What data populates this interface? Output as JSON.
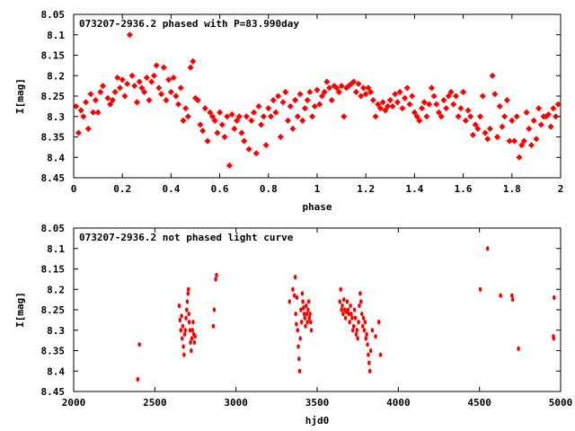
{
  "chart_data": [
    {
      "type": "scatter",
      "title": "073207-2936.2 phased with P=83.990day",
      "xlabel": "phase",
      "ylabel": "I[mag]",
      "xlim": [
        0,
        2
      ],
      "ylim": [
        8.05,
        8.45
      ],
      "y_inverted": true,
      "grid": false,
      "marker_color": "#ff0000",
      "x_ticks": [
        "0",
        "0.2",
        "0.4",
        "0.6",
        "0.8",
        "1",
        "1.2",
        "1.4",
        "1.6",
        "1.8",
        "2"
      ],
      "y_ticks": [
        "8.05",
        "8.1",
        "8.15",
        "8.2",
        "8.25",
        "8.3",
        "8.35",
        "8.4",
        "8.45"
      ],
      "points": [
        [
          0.01,
          8.275
        ],
        [
          0.02,
          8.34
        ],
        [
          0.03,
          8.285
        ],
        [
          0.04,
          8.3
        ],
        [
          0.05,
          8.265
        ],
        [
          0.06,
          8.33
        ],
        [
          0.07,
          8.245
        ],
        [
          0.08,
          8.29
        ],
        [
          0.09,
          8.26
        ],
        [
          0.1,
          8.29
        ],
        [
          0.11,
          8.24
        ],
        [
          0.12,
          8.225
        ],
        [
          0.14,
          8.255
        ],
        [
          0.15,
          8.27
        ],
        [
          0.16,
          8.26
        ],
        [
          0.17,
          8.24
        ],
        [
          0.18,
          8.205
        ],
        [
          0.19,
          8.23
        ],
        [
          0.2,
          8.21
        ],
        [
          0.21,
          8.25
        ],
        [
          0.22,
          8.22
        ],
        [
          0.23,
          8.1
        ],
        [
          0.24,
          8.2
        ],
        [
          0.25,
          8.225
        ],
        [
          0.26,
          8.265
        ],
        [
          0.27,
          8.215
        ],
        [
          0.28,
          8.23
        ],
        [
          0.29,
          8.24
        ],
        [
          0.3,
          8.205
        ],
        [
          0.31,
          8.26
        ],
        [
          0.32,
          8.215
        ],
        [
          0.33,
          8.2
        ],
        [
          0.34,
          8.175
        ],
        [
          0.35,
          8.23
        ],
        [
          0.36,
          8.245
        ],
        [
          0.37,
          8.18
        ],
        [
          0.38,
          8.26
        ],
        [
          0.39,
          8.21
        ],
        [
          0.4,
          8.24
        ],
        [
          0.41,
          8.205
        ],
        [
          0.42,
          8.25
        ],
        [
          0.43,
          8.27
        ],
        [
          0.44,
          8.23
        ],
        [
          0.45,
          8.31
        ],
        [
          0.46,
          8.28
        ],
        [
          0.47,
          8.3
        ],
        [
          0.48,
          8.18
        ],
        [
          0.49,
          8.165
        ],
        [
          0.5,
          8.255
        ],
        [
          0.51,
          8.26
        ],
        [
          0.52,
          8.32
        ],
        [
          0.53,
          8.335
        ],
        [
          0.54,
          8.28
        ],
        [
          0.55,
          8.36
        ],
        [
          0.56,
          8.29
        ],
        [
          0.57,
          8.3
        ],
        [
          0.58,
          8.31
        ],
        [
          0.59,
          8.34
        ],
        [
          0.6,
          8.29
        ],
        [
          0.61,
          8.32
        ],
        [
          0.62,
          8.35
        ],
        [
          0.63,
          8.3
        ],
        [
          0.64,
          8.42
        ],
        [
          0.65,
          8.295
        ],
        [
          0.66,
          8.33
        ],
        [
          0.67,
          8.31
        ],
        [
          0.68,
          8.3
        ],
        [
          0.69,
          8.34
        ],
        [
          0.7,
          8.36
        ],
        [
          0.71,
          8.3
        ],
        [
          0.72,
          8.38
        ],
        [
          0.73,
          8.31
        ],
        [
          0.74,
          8.29
        ],
        [
          0.75,
          8.39
        ],
        [
          0.76,
          8.275
        ],
        [
          0.77,
          8.32
        ],
        [
          0.78,
          8.3
        ],
        [
          0.79,
          8.37
        ],
        [
          0.8,
          8.28
        ],
        [
          0.81,
          8.3
        ],
        [
          0.82,
          8.26
        ],
        [
          0.83,
          8.29
        ],
        [
          0.84,
          8.25
        ],
        [
          0.85,
          8.35
        ],
        [
          0.86,
          8.265
        ],
        [
          0.87,
          8.24
        ],
        [
          0.88,
          8.31
        ],
        [
          0.89,
          8.275
        ],
        [
          0.9,
          8.33
        ],
        [
          0.91,
          8.26
        ],
        [
          0.92,
          8.3
        ],
        [
          0.93,
          8.245
        ],
        [
          0.94,
          8.31
        ],
        [
          0.95,
          8.28
        ],
        [
          0.96,
          8.26
        ],
        [
          0.97,
          8.24
        ],
        [
          0.98,
          8.3
        ],
        [
          0.99,
          8.275
        ],
        [
          1.0,
          8.235
        ],
        [
          1.01,
          8.27
        ],
        [
          1.02,
          8.25
        ],
        [
          1.03,
          8.24
        ],
        [
          1.04,
          8.215
        ],
        [
          1.05,
          8.23
        ],
        [
          1.06,
          8.26
        ],
        [
          1.07,
          8.225
        ],
        [
          1.08,
          8.23
        ],
        [
          1.09,
          8.24
        ],
        [
          1.1,
          8.225
        ],
        [
          1.11,
          8.3
        ],
        [
          1.12,
          8.23
        ],
        [
          1.13,
          8.225
        ],
        [
          1.14,
          8.22
        ],
        [
          1.15,
          8.215
        ],
        [
          1.16,
          8.24
        ],
        [
          1.17,
          8.22
        ],
        [
          1.18,
          8.25
        ],
        [
          1.19,
          8.23
        ],
        [
          1.2,
          8.245
        ],
        [
          1.21,
          8.23
        ],
        [
          1.22,
          8.24
        ],
        [
          1.23,
          8.26
        ],
        [
          1.24,
          8.3
        ],
        [
          1.25,
          8.27
        ],
        [
          1.26,
          8.28
        ],
        [
          1.27,
          8.265
        ],
        [
          1.28,
          8.285
        ],
        [
          1.29,
          8.275
        ],
        [
          1.3,
          8.26
        ],
        [
          1.31,
          8.275
        ],
        [
          1.32,
          8.245
        ],
        [
          1.33,
          8.265
        ],
        [
          1.34,
          8.24
        ],
        [
          1.35,
          8.28
        ],
        [
          1.36,
          8.255
        ],
        [
          1.37,
          8.23
        ],
        [
          1.38,
          8.27
        ],
        [
          1.39,
          8.25
        ],
        [
          1.4,
          8.29
        ],
        [
          1.41,
          8.3
        ],
        [
          1.42,
          8.31
        ],
        [
          1.43,
          8.28
        ],
        [
          1.44,
          8.265
        ],
        [
          1.45,
          8.3
        ],
        [
          1.46,
          8.27
        ],
        [
          1.47,
          8.23
        ],
        [
          1.48,
          8.25
        ],
        [
          1.49,
          8.27
        ],
        [
          1.5,
          8.29
        ],
        [
          1.51,
          8.3
        ],
        [
          1.52,
          8.26
        ],
        [
          1.53,
          8.28
        ],
        [
          1.54,
          8.25
        ],
        [
          1.55,
          8.24
        ],
        [
          1.56,
          8.27
        ],
        [
          1.57,
          8.25
        ],
        [
          1.58,
          8.3
        ],
        [
          1.59,
          8.28
        ],
        [
          1.6,
          8.24
        ],
        [
          1.61,
          8.31
        ],
        [
          1.62,
          8.285
        ],
        [
          1.63,
          8.3
        ],
        [
          1.64,
          8.345
        ],
        [
          1.65,
          8.32
        ],
        [
          1.66,
          8.33
        ],
        [
          1.67,
          8.3
        ],
        [
          1.68,
          8.25
        ],
        [
          1.69,
          8.34
        ],
        [
          1.7,
          8.355
        ],
        [
          1.71,
          8.33
        ],
        [
          1.72,
          8.2
        ],
        [
          1.73,
          8.245
        ],
        [
          1.74,
          8.35
        ],
        [
          1.75,
          8.275
        ],
        [
          1.76,
          8.325
        ],
        [
          1.77,
          8.3
        ],
        [
          1.78,
          8.26
        ],
        [
          1.79,
          8.36
        ],
        [
          1.8,
          8.31
        ],
        [
          1.81,
          8.36
        ],
        [
          1.82,
          8.3
        ],
        [
          1.83,
          8.4
        ],
        [
          1.84,
          8.37
        ],
        [
          1.85,
          8.36
        ],
        [
          1.86,
          8.29
        ],
        [
          1.87,
          8.33
        ],
        [
          1.88,
          8.37
        ],
        [
          1.89,
          8.31
        ],
        [
          1.9,
          8.355
        ],
        [
          1.91,
          8.28
        ],
        [
          1.92,
          8.32
        ],
        [
          1.93,
          8.3
        ],
        [
          1.94,
          8.3
        ],
        [
          1.95,
          8.295
        ],
        [
          1.96,
          8.325
        ],
        [
          1.97,
          8.28
        ],
        [
          1.98,
          8.3
        ],
        [
          1.99,
          8.27
        ]
      ]
    },
    {
      "type": "scatter",
      "title": "073207-2936.2 not phased light curve",
      "xlabel": "hjd0",
      "ylabel": "I[mag]",
      "xlim": [
        2000,
        5000
      ],
      "ylim": [
        8.05,
        8.45
      ],
      "y_inverted": true,
      "grid": false,
      "marker_color": "#ff0000",
      "x_ticks": [
        "2000",
        "2500",
        "3000",
        "3500",
        "4000",
        "4500",
        "5000"
      ],
      "y_ticks": [
        "8.05",
        "8.1",
        "8.15",
        "8.2",
        "8.25",
        "8.3",
        "8.35",
        "8.4",
        "8.45"
      ],
      "points": [
        [
          2395,
          8.42
        ],
        [
          2405,
          8.335
        ],
        [
          2650,
          8.24
        ],
        [
          2655,
          8.275
        ],
        [
          2660,
          8.3
        ],
        [
          2665,
          8.265
        ],
        [
          2668,
          8.32
        ],
        [
          2672,
          8.29
        ],
        [
          2676,
          8.34
        ],
        [
          2680,
          8.36
        ],
        [
          2684,
          8.31
        ],
        [
          2688,
          8.3
        ],
        [
          2692,
          8.27
        ],
        [
          2696,
          8.25
        ],
        [
          2700,
          8.23
        ],
        [
          2704,
          8.21
        ],
        [
          2707,
          8.2
        ],
        [
          2710,
          8.26
        ],
        [
          2712,
          8.28
        ],
        [
          2716,
          8.3
        ],
        [
          2720,
          8.33
        ],
        [
          2724,
          8.35
        ],
        [
          2728,
          8.32
        ],
        [
          2732,
          8.3
        ],
        [
          2736,
          8.28
        ],
        [
          2740,
          8.31
        ],
        [
          2744,
          8.33
        ],
        [
          2748,
          8.315
        ],
        [
          2860,
          8.29
        ],
        [
          2866,
          8.25
        ],
        [
          2875,
          8.175
        ],
        [
          2880,
          8.165
        ],
        [
          3330,
          8.23
        ],
        [
          3350,
          8.2
        ],
        [
          3360,
          8.215
        ],
        [
          3365,
          8.17
        ],
        [
          3368,
          8.26
        ],
        [
          3372,
          8.285
        ],
        [
          3376,
          8.22
        ],
        [
          3380,
          8.3
        ],
        [
          3384,
          8.34
        ],
        [
          3388,
          8.37
        ],
        [
          3392,
          8.4
        ],
        [
          3396,
          8.32
        ],
        [
          3400,
          8.25
        ],
        [
          3404,
          8.28
        ],
        [
          3408,
          8.21
        ],
        [
          3412,
          8.23
        ],
        [
          3416,
          8.245
        ],
        [
          3420,
          8.26
        ],
        [
          3424,
          8.27
        ],
        [
          3428,
          8.29
        ],
        [
          3432,
          8.24
        ],
        [
          3436,
          8.26
        ],
        [
          3440,
          8.28
        ],
        [
          3444,
          8.25
        ],
        [
          3448,
          8.23
        ],
        [
          3452,
          8.27
        ],
        [
          3456,
          8.26
        ],
        [
          3460,
          8.28
        ],
        [
          3464,
          8.3
        ],
        [
          3640,
          8.23
        ],
        [
          3645,
          8.2
        ],
        [
          3650,
          8.25
        ],
        [
          3655,
          8.24
        ],
        [
          3660,
          8.26
        ],
        [
          3665,
          8.225
        ],
        [
          3670,
          8.25
        ],
        [
          3675,
          8.27
        ],
        [
          3680,
          8.255
        ],
        [
          3685,
          8.23
        ],
        [
          3690,
          8.25
        ],
        [
          3695,
          8.26
        ],
        [
          3700,
          8.28
        ],
        [
          3705,
          8.24
        ],
        [
          3710,
          8.26
        ],
        [
          3715,
          8.27
        ],
        [
          3720,
          8.3
        ],
        [
          3725,
          8.29
        ],
        [
          3730,
          8.25
        ],
        [
          3735,
          8.27
        ],
        [
          3740,
          8.31
        ],
        [
          3745,
          8.3
        ],
        [
          3750,
          8.32
        ],
        [
          3755,
          8.28
        ],
        [
          3760,
          8.24
        ],
        [
          3765,
          8.21
        ],
        [
          3770,
          8.23
        ],
        [
          3775,
          8.26
        ],
        [
          3780,
          8.29
        ],
        [
          3785,
          8.27
        ],
        [
          3790,
          8.3
        ],
        [
          3795,
          8.28
        ],
        [
          3800,
          8.32
        ],
        [
          3805,
          8.31
        ],
        [
          3810,
          8.335
        ],
        [
          3815,
          8.36
        ],
        [
          3820,
          8.38
        ],
        [
          3825,
          8.4
        ],
        [
          3830,
          8.35
        ],
        [
          3840,
          8.3
        ],
        [
          3860,
          8.315
        ],
        [
          3880,
          8.28
        ],
        [
          3890,
          8.36
        ],
        [
          4505,
          8.2
        ],
        [
          4550,
          8.1
        ],
        [
          4630,
          8.215
        ],
        [
          4700,
          8.215
        ],
        [
          4705,
          8.225
        ],
        [
          4740,
          8.345
        ],
        [
          4955,
          8.315
        ],
        [
          4958,
          8.32
        ],
        [
          4960,
          8.22
        ]
      ]
    }
  ]
}
